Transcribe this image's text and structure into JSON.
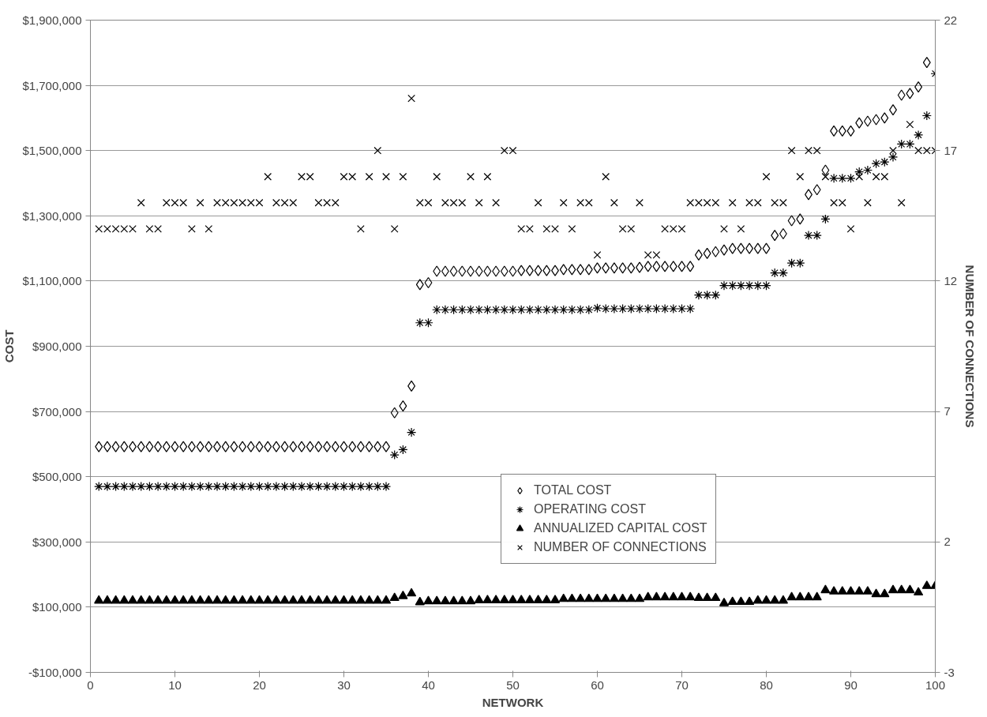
{
  "chart_data": {
    "type": "scatter",
    "xlabel": "NETWORK",
    "ylabel": "COST",
    "y2label": "NUMBER OF CONNECTIONS",
    "x": [
      1,
      2,
      3,
      4,
      5,
      6,
      7,
      8,
      9,
      10,
      11,
      12,
      13,
      14,
      15,
      16,
      17,
      18,
      19,
      20,
      21,
      22,
      23,
      24,
      25,
      26,
      27,
      28,
      29,
      30,
      31,
      32,
      33,
      34,
      35,
      36,
      37,
      38,
      39,
      40,
      41,
      42,
      43,
      44,
      45,
      46,
      47,
      48,
      49,
      50,
      51,
      52,
      53,
      54,
      55,
      56,
      57,
      58,
      59,
      60,
      61,
      62,
      63,
      64,
      65,
      66,
      67,
      68,
      69,
      70,
      71,
      72,
      73,
      74,
      75,
      76,
      77,
      78,
      79,
      80,
      81,
      82,
      83,
      84,
      85,
      86,
      87,
      88,
      89,
      90,
      91,
      92,
      93,
      94,
      95,
      96,
      97,
      98,
      99,
      100
    ],
    "series": [
      {
        "name": "TOTAL COST",
        "color": "#000000",
        "marker": "diamond",
        "values": [
          592000,
          592000,
          592000,
          592000,
          592000,
          592000,
          592000,
          592000,
          592000,
          592000,
          592000,
          592000,
          592000,
          592000,
          592000,
          592000,
          592000,
          592000,
          592000,
          592000,
          592000,
          592000,
          592000,
          592000,
          592000,
          592000,
          592000,
          592000,
          592000,
          592000,
          592000,
          592000,
          592000,
          592000,
          592000,
          696000,
          717000,
          778000,
          1089000,
          1095000,
          1130000,
          1130000,
          1130000,
          1130000,
          1130000,
          1130000,
          1130000,
          1130000,
          1130000,
          1130000,
          1132000,
          1132000,
          1132000,
          1132000,
          1132000,
          1135000,
          1135000,
          1135000,
          1135000,
          1140000,
          1140000,
          1140000,
          1140000,
          1140000,
          1142000,
          1145000,
          1145000,
          1145000,
          1145000,
          1145000,
          1145000,
          1180000,
          1185000,
          1190000,
          1195000,
          1200000,
          1200000,
          1200000,
          1200000,
          1200000,
          1240000,
          1245000,
          1285000,
          1290000,
          1365000,
          1380000,
          1440000,
          1560000,
          1560000,
          1560000,
          1585000,
          1590000,
          1595000,
          1600000,
          1625000,
          1670000,
          1675000,
          1695000,
          1770000,
          null
        ]
      },
      {
        "name": "OPERATING COST",
        "color": "#000000",
        "marker": "cross",
        "values": [
          470000,
          470000,
          470000,
          470000,
          470000,
          470000,
          470000,
          470000,
          470000,
          470000,
          470000,
          470000,
          470000,
          470000,
          470000,
          470000,
          470000,
          470000,
          470000,
          470000,
          470000,
          470000,
          470000,
          470000,
          470000,
          470000,
          470000,
          470000,
          470000,
          470000,
          470000,
          470000,
          470000,
          470000,
          470000,
          567000,
          583000,
          636000,
          972000,
          972000,
          1012000,
          1012000,
          1012000,
          1012000,
          1012000,
          1012000,
          1012000,
          1012000,
          1012000,
          1012000,
          1012000,
          1012000,
          1012000,
          1012000,
          1012000,
          1012000,
          1012000,
          1012000,
          1012000,
          1017000,
          1015000,
          1015000,
          1015000,
          1015000,
          1015000,
          1015000,
          1015000,
          1015000,
          1015000,
          1015000,
          1015000,
          1057000,
          1057000,
          1057000,
          1086000,
          1086000,
          1086000,
          1086000,
          1086000,
          1086000,
          1125000,
          1125000,
          1155000,
          1155000,
          1240000,
          1240000,
          1290000,
          1415000,
          1415000,
          1415000,
          1435000,
          1440000,
          1460000,
          1465000,
          1480000,
          1520000,
          1520000,
          1548000,
          1607000,
          1736000
        ]
      },
      {
        "name": "ANNUALIZED CAPITAL COST",
        "color": "#000000",
        "marker": "triangle",
        "values": [
          120000,
          120000,
          120000,
          120000,
          120000,
          120000,
          120000,
          120000,
          120000,
          120000,
          120000,
          120000,
          120000,
          120000,
          120000,
          120000,
          120000,
          120000,
          120000,
          120000,
          120000,
          120000,
          120000,
          120000,
          120000,
          120000,
          120000,
          120000,
          120000,
          120000,
          120000,
          120000,
          120000,
          120000,
          120000,
          128000,
          134000,
          142000,
          115000,
          118000,
          118000,
          118000,
          118000,
          118000,
          118000,
          121000,
          121000,
          121000,
          121000,
          121000,
          121000,
          121000,
          121000,
          121000,
          121000,
          125000,
          125000,
          125000,
          125000,
          125000,
          125000,
          125000,
          125000,
          125000,
          125000,
          130000,
          130000,
          130000,
          130000,
          130000,
          130000,
          128000,
          128000,
          128000,
          112000,
          116000,
          116000,
          116000,
          120000,
          120000,
          120000,
          120000,
          130000,
          130000,
          130000,
          130000,
          152000,
          148000,
          148000,
          148000,
          148000,
          148000,
          140000,
          140000,
          152000,
          152000,
          152000,
          145000,
          165000,
          165000
        ]
      },
      {
        "name": "NUMBER OF CONNECTIONS",
        "color": "#000000",
        "marker": "x",
        "axis": "y2",
        "values": [
          14,
          14,
          14,
          14,
          14,
          15,
          14,
          14,
          15,
          15,
          15,
          14,
          15,
          14,
          15,
          15,
          15,
          15,
          15,
          15,
          16,
          15,
          15,
          15,
          16,
          16,
          15,
          15,
          15,
          16,
          16,
          14,
          16,
          17,
          16,
          14,
          16,
          19,
          15,
          15,
          16,
          15,
          15,
          15,
          16,
          15,
          16,
          15,
          17,
          17,
          14,
          14,
          15,
          14,
          14,
          15,
          14,
          15,
          15,
          13,
          16,
          15,
          14,
          14,
          15,
          13,
          13,
          14,
          14,
          14,
          15,
          15,
          15,
          15,
          14,
          15,
          14,
          15,
          15,
          16,
          15,
          15,
          17,
          16,
          17,
          17,
          16,
          15,
          15,
          14,
          16,
          15,
          16,
          16,
          17,
          15,
          18,
          17,
          17,
          17
        ]
      }
    ],
    "xlim": [
      0,
      100
    ],
    "xticks": [
      0,
      10,
      20,
      30,
      40,
      50,
      60,
      70,
      80,
      90,
      100
    ],
    "ylim": [
      -100000,
      1900000
    ],
    "yticks": [
      {
        "value": -100000,
        "label": "-$100,000"
      },
      {
        "value": 100000,
        "label": "$100,000"
      },
      {
        "value": 300000,
        "label": "$300,000"
      },
      {
        "value": 500000,
        "label": "$500,000"
      },
      {
        "value": 700000,
        "label": "$700,000"
      },
      {
        "value": 900000,
        "label": "$900,000"
      },
      {
        "value": 1100000,
        "label": "$1,100,000"
      },
      {
        "value": 1300000,
        "label": "$1,300,000"
      },
      {
        "value": 1500000,
        "label": "$1,500,000"
      },
      {
        "value": 1700000,
        "label": "$1,700,000"
      },
      {
        "value": 1900000,
        "label": "$1,900,000"
      }
    ],
    "y2lim": [
      -3,
      22
    ],
    "y2ticks": [
      -3,
      2,
      7,
      12,
      17,
      22
    ],
    "grid": "y",
    "legend": "bottom right"
  }
}
